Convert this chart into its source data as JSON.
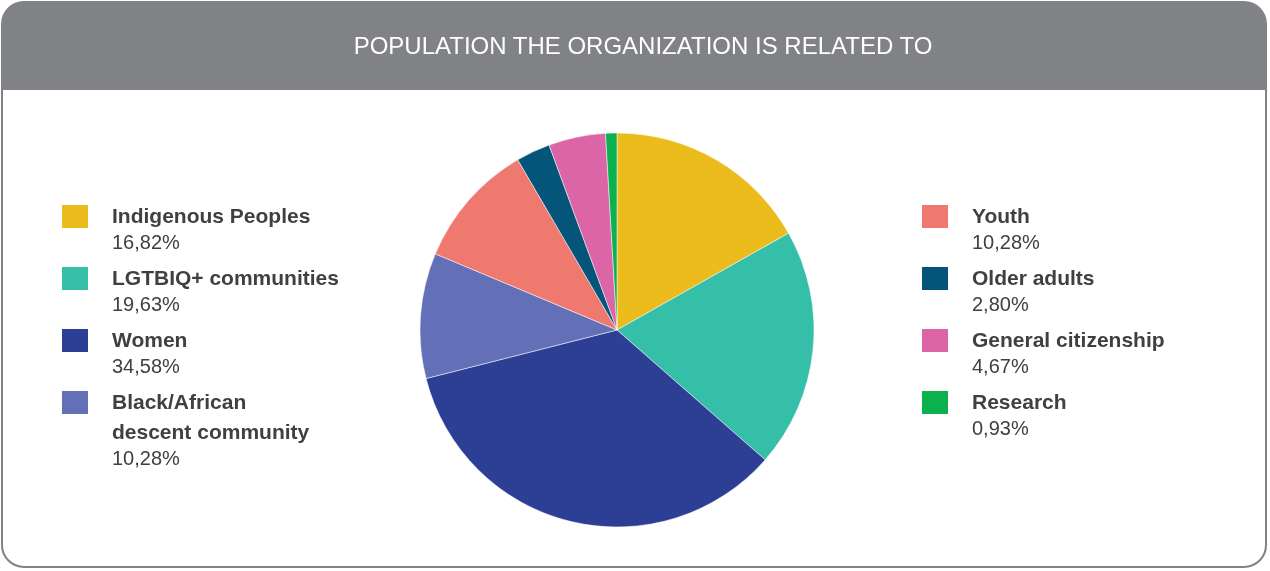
{
  "chart_data": {
    "type": "pie",
    "title": "POPULATION THE ORGANIZATION IS RELATED TO",
    "categories": [
      "Indigenous Peoples",
      "LGTBIQ+ communities",
      "Women",
      "Black/African descent community",
      "Youth",
      "Older adults",
      "General citizenship",
      "Research"
    ],
    "values": [
      16.82,
      19.63,
      34.58,
      10.28,
      10.28,
      2.8,
      4.67,
      0.93
    ],
    "value_labels": [
      "16,82%",
      "19,63%",
      "34,58%",
      "10,28%",
      "10,28%",
      "2,80%",
      "4,67%",
      "0,93%"
    ],
    "colors": [
      "#ecbc1c",
      "#35bfa9",
      "#2c3f94",
      "#6370b8",
      "#ef786f",
      "#055479",
      "#dc65a8",
      "#0bb04f"
    ],
    "legend": "left"
  }
}
